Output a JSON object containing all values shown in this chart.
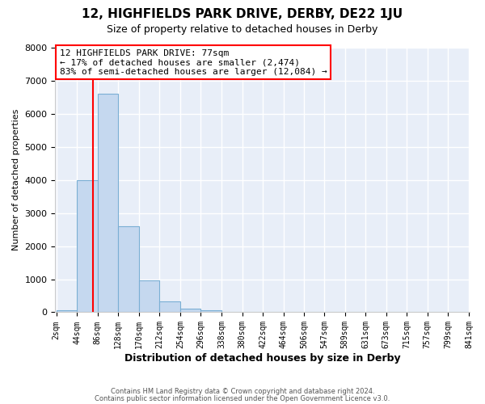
{
  "title": "12, HIGHFIELDS PARK DRIVE, DERBY, DE22 1JU",
  "subtitle": "Size of property relative to detached houses in Derby",
  "xlabel": "Distribution of detached houses by size in Derby",
  "ylabel": "Number of detached properties",
  "bin_edges": [
    2,
    44,
    86,
    128,
    170,
    212,
    254,
    296,
    338,
    380,
    422,
    464,
    506,
    547,
    589,
    631,
    673,
    715,
    757,
    799,
    841
  ],
  "bin_labels": [
    "2sqm",
    "44sqm",
    "86sqm",
    "128sqm",
    "170sqm",
    "212sqm",
    "254sqm",
    "296sqm",
    "338sqm",
    "380sqm",
    "422sqm",
    "464sqm",
    "506sqm",
    "547sqm",
    "589sqm",
    "631sqm",
    "673sqm",
    "715sqm",
    "757sqm",
    "799sqm",
    "841sqm"
  ],
  "counts": [
    70,
    4000,
    6600,
    2600,
    960,
    320,
    120,
    70,
    0,
    0,
    0,
    0,
    0,
    0,
    0,
    0,
    0,
    0,
    0,
    0
  ],
  "bar_color": "#c5d8ef",
  "bar_edge_color": "#7bafd4",
  "property_line_x": 77,
  "property_line_color": "red",
  "annotation_title": "12 HIGHFIELDS PARK DRIVE: 77sqm",
  "annotation_line1": "← 17% of detached houses are smaller (2,474)",
  "annotation_line2": "83% of semi-detached houses are larger (12,084) →",
  "annotation_box_color": "white",
  "annotation_box_edge_color": "red",
  "ylim": [
    0,
    8000
  ],
  "yticks": [
    0,
    1000,
    2000,
    3000,
    4000,
    5000,
    6000,
    7000,
    8000
  ],
  "footer1": "Contains HM Land Registry data © Crown copyright and database right 2024.",
  "footer2": "Contains public sector information licensed under the Open Government Licence v3.0.",
  "fig_bg_color": "#ffffff",
  "plot_bg_color": "#e8eef8",
  "grid_color": "#ffffff"
}
